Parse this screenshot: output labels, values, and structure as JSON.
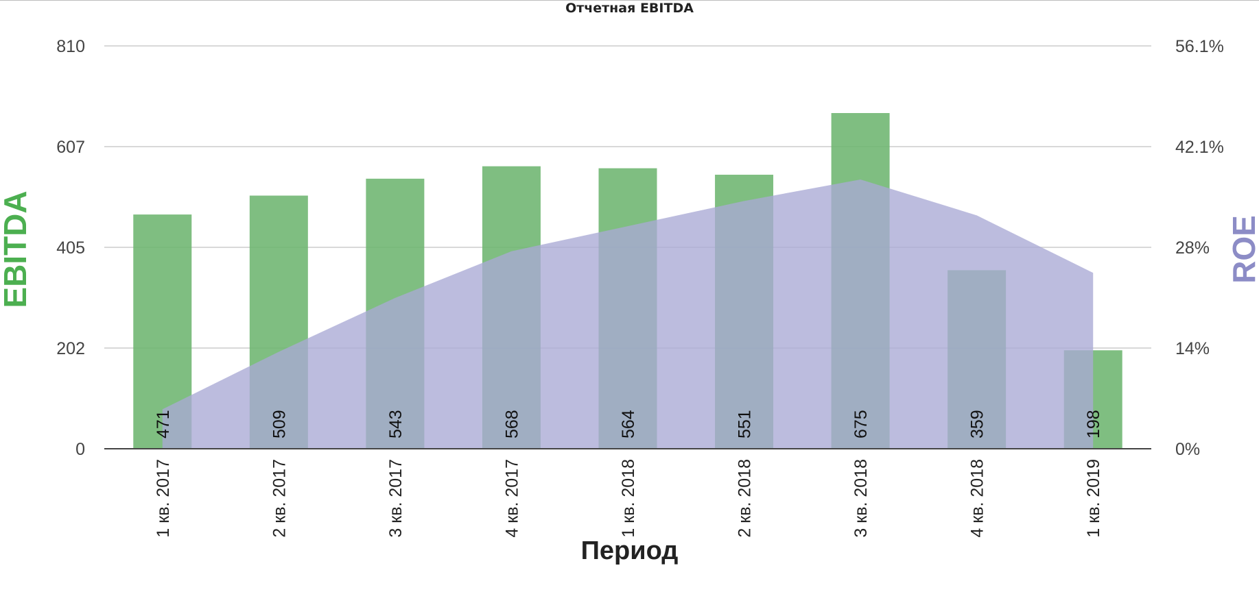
{
  "chart_data": {
    "type": "bar",
    "title": "Отчетная EBITDA",
    "xlabel": "Период",
    "ylabel": "EBITDA",
    "y2label": "ROE",
    "categories": [
      "1 кв. 2017",
      "2 кв. 2017",
      "3 кв. 2017",
      "4 кв. 2017",
      "1 кв. 2018",
      "2 кв. 2018",
      "3 кв. 2018",
      "4 кв. 2018",
      "1 кв. 2019"
    ],
    "series": [
      {
        "name": "EBITDA",
        "type": "bar",
        "axis": "left",
        "color": "#6db56f",
        "values": [
          471,
          509,
          543,
          568,
          564,
          551,
          675,
          359,
          198
        ]
      },
      {
        "name": "ROE",
        "type": "area",
        "axis": "right",
        "color": "#a9a9d5",
        "values": [
          5.5,
          13.5,
          21.0,
          27.5,
          31.0,
          34.5,
          37.5,
          32.5,
          24.5
        ]
      }
    ],
    "ylim": [
      0,
      810
    ],
    "y_ticks": [
      "0",
      "202",
      "405",
      "607",
      "810"
    ],
    "y2lim": [
      0,
      56.1
    ],
    "y2_ticks": [
      "0%",
      "14%",
      "28%",
      "42.1%",
      "56.1%"
    ],
    "grid": true,
    "legend": "none"
  }
}
